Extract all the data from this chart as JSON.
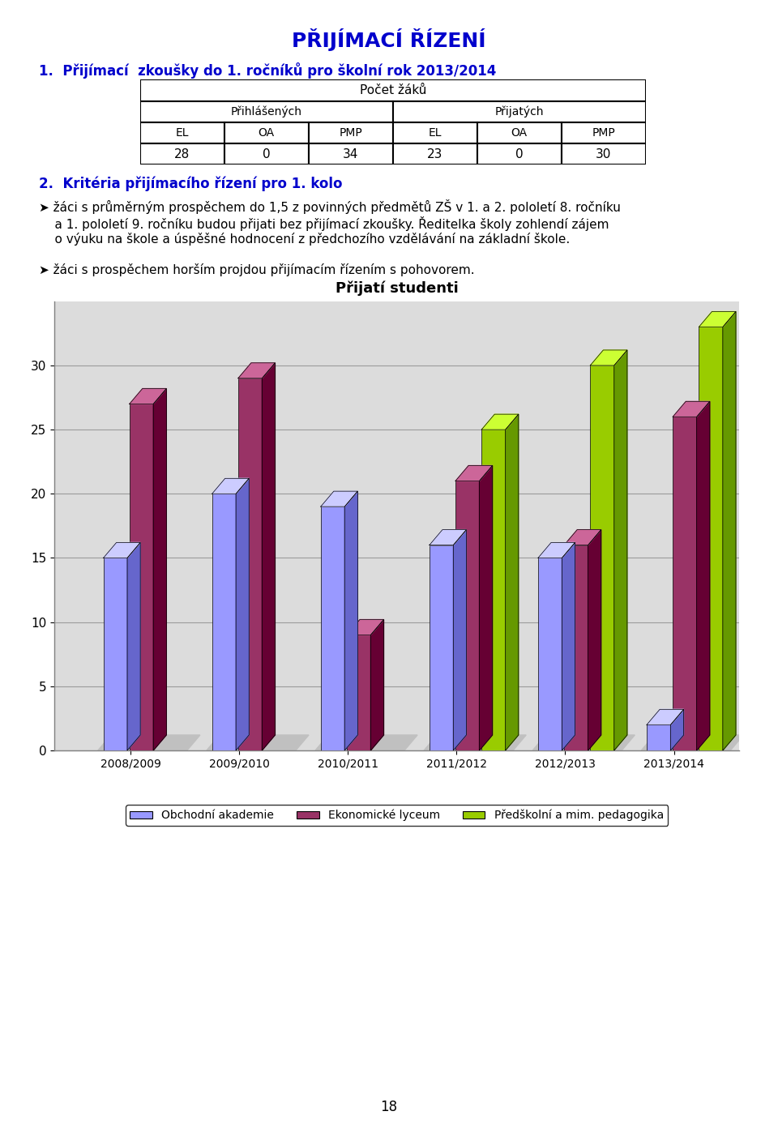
{
  "title": "PŘIJÍMACÍ ŘÍZENÍ",
  "section1_title": "1.  Přijímací  zkoušky do 1. ročníků pro školní rok 2013/2014",
  "table_header1": "Počet žáků",
  "table_header2a": "Přihlášených",
  "table_header2b": "Přijatých",
  "table_cols": [
    "EL",
    "OA",
    "PMP",
    "EL",
    "OA",
    "PMP"
  ],
  "table_values": [
    "28",
    "0",
    "34",
    "23",
    "0",
    "30"
  ],
  "section2_title": "2.  Kritéria přijímacího řízení pro 1. kolo",
  "bullet1": "žáci s průměrným prospěchem do 1,5 z povinných předmětů ZŠ v 1. a 2. polo letí 8. ročníku\na 1. polo letí 9. ročníku budou přijati bez přijímací zkoušky. Ředitelka školy zohlendí zájem\no výuku na škole a úspěšné hodnocení z předchozího vzdělávání na základní škole.",
  "bullet2": "žáci s prospěchem horším projdou přijímacím řízením s pohovorem.",
  "chart_title": "Přijatí studenti",
  "categories": [
    "2008/2009",
    "2009/2010",
    "2010/2011",
    "2011/2012",
    "2012/2013",
    "2013/2014"
  ],
  "series": [
    {
      "label": "Obchodní akademie",
      "color": "#9999FF",
      "side_color": "#6666CC",
      "top_color": "#CCCCFF",
      "values": [
        15,
        20,
        19,
        16,
        15,
        2
      ]
    },
    {
      "label": "Ekonomické lyceum",
      "color": "#993366",
      "side_color": "#660033",
      "top_color": "#CC6699",
      "values": [
        27,
        29,
        9,
        21,
        16,
        26
      ]
    },
    {
      "label": "Předškolní a mim. pedagogika",
      "color": "#99CC00",
      "side_color": "#669900",
      "top_color": "#CCFF33",
      "values": [
        0,
        0,
        0,
        25,
        30,
        33
      ]
    }
  ],
  "ylim": [
    0,
    35
  ],
  "yticks": [
    0,
    5,
    10,
    15,
    20,
    25,
    30
  ],
  "page_number": "18",
  "title_color": "#0000CC",
  "section_color": "#0000CC",
  "bg_color": "#FFFFFF",
  "chart_bg": "#DCDCDC",
  "chart_border": "#808080"
}
